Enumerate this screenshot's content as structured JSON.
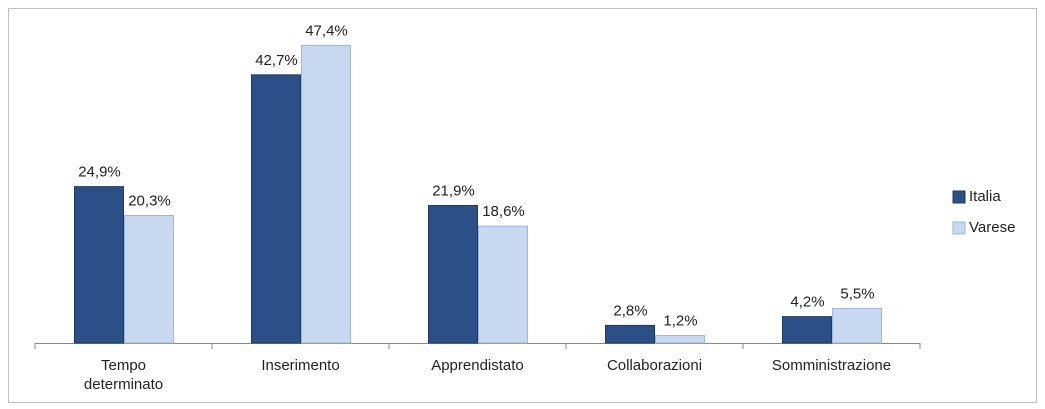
{
  "chart_data": {
    "type": "bar",
    "categories": [
      "Tempo\ndeterminato",
      "Inserimento",
      "Apprendistato",
      "Collaborazioni",
      "Somministrazione"
    ],
    "series": [
      {
        "name": "Italia",
        "color": "#2b5088",
        "values": [
          24.9,
          42.7,
          21.9,
          2.8,
          4.2
        ],
        "value_labels": [
          "24,9%",
          "42,7%",
          "21,9%",
          "2,8%",
          "4,2%"
        ]
      },
      {
        "name": "Varese",
        "color": "#c6d9f1",
        "values": [
          20.3,
          47.4,
          18.6,
          1.2,
          5.5
        ],
        "value_labels": [
          "20,3%",
          "47,4%",
          "18,6%",
          "1,2%",
          "5,5%"
        ]
      }
    ],
    "ylim": [
      0,
      50
    ],
    "legend": "right"
  }
}
